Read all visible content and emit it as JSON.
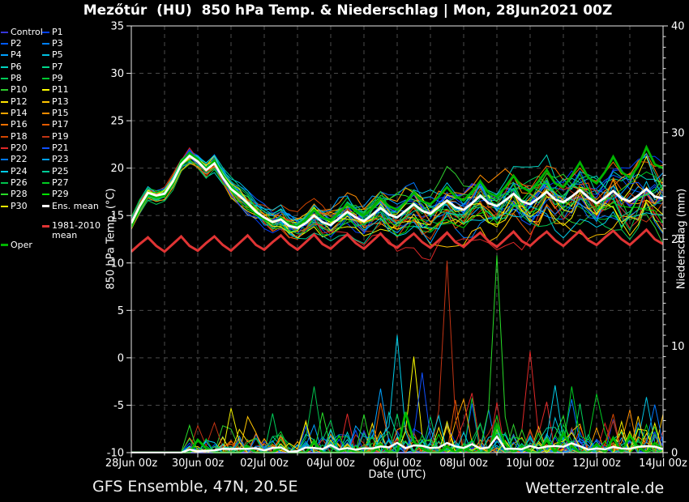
{
  "title": "Mezőtúr  (HU)  850 hPa Temp. & Niederschlag | Mon, 28Jun2021 00Z",
  "footer": {
    "left": "GFS Ensemble, 47N, 20.5E",
    "right": "Wetterzentrale.de"
  },
  "colors": {
    "background": "#000000",
    "text": "#ffffff",
    "grid": "#565656",
    "frame": "#e8e8e8",
    "ens_mean": "#ffffff",
    "climate_mean": "#e03434",
    "oper": "#00b400",
    "control": "#3636d8"
  },
  "legend": {
    "ens_mean_label": "Ens. mean",
    "climate_label": [
      "1981-2010",
      "mean"
    ],
    "oper_label": "Oper"
  },
  "chart_data": {
    "type": "line",
    "title": "Mezőtúr  (HU)  850 hPa Temp. & Niederschlag | Mon, 28Jun2021 00Z",
    "xlabel": "Date (UTC)",
    "ylabel_left": "850 hPa Temp. (°C)",
    "ylabel_right": "Niederschlag (mm)",
    "ylim_left": [
      -10,
      35
    ],
    "ylim_right": [
      0,
      40
    ],
    "x_start": "28Jun2021 00Z",
    "x_step_hours": 6,
    "n_points": 65,
    "n_days": 16,
    "x_tick_labels": [
      "28Jun 00z",
      "30Jun 00z",
      "02Jul 00z",
      "04Jul 00z",
      "06Jul 00z",
      "08Jul 00z",
      "10Jul 00z",
      "12Jul 00z",
      "14Jul 00z"
    ],
    "left_tick_values": [
      35,
      30,
      25,
      20,
      15,
      10,
      5,
      0,
      -5,
      -10
    ],
    "right_tick_values": [
      40,
      30,
      20,
      10,
      0
    ],
    "grid_on": true,
    "legend_position": "top-left",
    "series": {
      "ens_mean_temp": [
        14.2,
        16.0,
        17.4,
        17.1,
        17.3,
        18.6,
        20.4,
        21.3,
        20.7,
        19.8,
        20.5,
        19.0,
        17.8,
        17.1,
        16.3,
        15.4,
        14.8,
        14.3,
        14.6,
        13.9,
        13.7,
        14.2,
        15.0,
        14.3,
        14.0,
        14.7,
        15.4,
        14.8,
        14.4,
        15.1,
        15.8,
        15.1,
        14.8,
        15.5,
        16.2,
        15.5,
        15.2,
        15.9,
        16.6,
        15.9,
        15.6,
        16.3,
        17.1,
        16.3,
        16.0,
        16.6,
        17.3,
        16.5,
        16.2,
        16.8,
        17.5,
        16.7,
        16.4,
        17.0,
        17.7,
        16.9,
        16.3,
        16.9,
        17.6,
        16.8,
        16.5,
        17.1,
        17.8,
        17.0,
        16.8
      ],
      "climate_mean_temp": [
        11.2,
        12.0,
        12.7,
        11.8,
        11.2,
        12.0,
        12.8,
        11.8,
        11.3,
        12.1,
        12.8,
        11.9,
        11.3,
        12.1,
        12.9,
        11.9,
        11.4,
        12.2,
        12.9,
        12.0,
        11.4,
        12.2,
        13.0,
        12.0,
        11.5,
        12.3,
        13.0,
        12.1,
        11.5,
        12.3,
        13.1,
        12.1,
        11.6,
        12.4,
        13.1,
        12.2,
        11.6,
        12.4,
        13.2,
        12.2,
        11.7,
        12.5,
        13.2,
        12.3,
        11.7,
        12.5,
        13.3,
        12.3,
        11.8,
        12.6,
        13.3,
        12.4,
        11.8,
        12.6,
        13.4,
        12.4,
        11.9,
        12.7,
        13.4,
        12.5,
        11.9,
        12.7,
        13.5,
        12.5,
        12.0
      ],
      "oper_temp": [
        13.8,
        15.8,
        17.2,
        16.9,
        17.1,
        18.4,
        20.6,
        21.6,
        20.9,
        19.9,
        20.8,
        19.2,
        18.0,
        17.2,
        16.1,
        15.2,
        14.6,
        14.2,
        14.8,
        14.0,
        13.9,
        14.6,
        15.6,
        14.8,
        14.5,
        15.3,
        16.2,
        15.5,
        15.0,
        15.8,
        16.8,
        16.0,
        15.6,
        16.4,
        17.4,
        16.5,
        16.2,
        17.0,
        18.0,
        17.0,
        16.6,
        17.5,
        18.6,
        17.4,
        17.0,
        18.0,
        19.2,
        18.0,
        17.5,
        18.6,
        19.8,
        18.4,
        18.0,
        19.2,
        20.6,
        19.0,
        18.4,
        19.6,
        21.2,
        19.6,
        19.0,
        20.2,
        22.2,
        20.4,
        20.0
      ],
      "oper_precip": [
        0,
        0,
        0,
        0,
        0,
        0,
        0,
        0,
        1.2,
        0.4,
        0,
        0,
        0,
        0,
        0.6,
        0,
        0,
        0,
        0.5,
        0,
        0,
        0,
        1.0,
        0,
        0,
        0,
        0.5,
        0,
        0,
        0,
        0.8,
        0,
        0,
        3.8,
        1.0,
        0.4,
        0,
        0,
        0.6,
        0,
        0.4,
        0,
        0,
        0,
        2.6,
        0.8,
        0,
        0.6,
        0,
        0,
        1.2,
        0,
        1.8,
        0.6,
        0,
        0,
        0.8,
        0,
        1.4,
        0,
        1.6,
        0.5,
        0,
        0.9,
        0.3
      ],
      "members": [
        {
          "name": "Control",
          "color": "#3636d8",
          "seed": 101,
          "amp": 0.7
        },
        {
          "name": "P1",
          "color": "#0040ff",
          "seed": 1,
          "amp": 1.0
        },
        {
          "name": "P2",
          "color": "#0059ff",
          "seed": 2,
          "amp": 0.9
        },
        {
          "name": "P3",
          "color": "#0080ff",
          "seed": 3,
          "amp": 1.1
        },
        {
          "name": "P4",
          "color": "#00a0ff",
          "seed": 4,
          "amp": 0.85
        },
        {
          "name": "P5",
          "color": "#00c0e0",
          "seed": 5,
          "amp": 1.15
        },
        {
          "name": "P6",
          "color": "#00d4c0",
          "seed": 6,
          "amp": 1.0
        },
        {
          "name": "P7",
          "color": "#00d88c",
          "seed": 7,
          "amp": 0.9
        },
        {
          "name": "P8",
          "color": "#00cc58",
          "seed": 8,
          "amp": 1.1
        },
        {
          "name": "P9",
          "color": "#00c830",
          "seed": 9,
          "amp": 1.0
        },
        {
          "name": "P10",
          "color": "#2ecc2e",
          "seed": 10,
          "amp": 1.25
        },
        {
          "name": "P11",
          "color": "#ffff00",
          "seed": 11,
          "amp": 1.0
        },
        {
          "name": "P12",
          "color": "#ffe400",
          "seed": 12,
          "amp": 0.9
        },
        {
          "name": "P13",
          "color": "#ffc400",
          "seed": 13,
          "amp": 1.35
        },
        {
          "name": "P14",
          "color": "#ffa400",
          "seed": 14,
          "amp": 1.0
        },
        {
          "name": "P15",
          "color": "#ff8c00",
          "seed": 15,
          "amp": 1.1
        },
        {
          "name": "P16",
          "color": "#f47000",
          "seed": 16,
          "amp": 0.9
        },
        {
          "name": "P17",
          "color": "#e45a00",
          "seed": 17,
          "amp": 1.2
        },
        {
          "name": "P18",
          "color": "#d44600",
          "seed": 18,
          "amp": 1.0
        },
        {
          "name": "P19",
          "color": "#c23414",
          "seed": 19,
          "amp": 1.1
        },
        {
          "name": "P20",
          "color": "#e02828",
          "seed": 20,
          "amp": 1.3
        },
        {
          "name": "P21",
          "color": "#1050ff",
          "seed": 21,
          "amp": 1.0
        },
        {
          "name": "P22",
          "color": "#0078ff",
          "seed": 22,
          "amp": 0.9
        },
        {
          "name": "P23",
          "color": "#00a2ff",
          "seed": 23,
          "amp": 1.15
        },
        {
          "name": "P24",
          "color": "#00cce8",
          "seed": 24,
          "amp": 1.0
        },
        {
          "name": "P25",
          "color": "#00cc96",
          "seed": 25,
          "amp": 1.1
        },
        {
          "name": "P26",
          "color": "#00c24e",
          "seed": 26,
          "amp": 1.0
        },
        {
          "name": "P27",
          "color": "#00cc22",
          "seed": 27,
          "amp": 0.9
        },
        {
          "name": "P28",
          "color": "#28dc28",
          "seed": 28,
          "amp": 1.2
        },
        {
          "name": "P29",
          "color": "#00e400",
          "seed": 29,
          "amp": 1.0
        },
        {
          "name": "P30",
          "color": "#f0f000",
          "seed": 30,
          "amp": 1.1
        }
      ],
      "precip_events": [
        [
          "P19",
          10,
          2.8
        ],
        [
          "P10",
          12,
          2.2
        ],
        [
          "P26",
          22,
          6.2
        ],
        [
          "P23",
          30,
          6.0
        ],
        [
          "P24",
          32,
          11.0
        ],
        [
          "P11",
          34,
          9.0
        ],
        [
          "P21",
          35,
          7.5
        ],
        [
          "P19",
          38,
          18.0
        ],
        [
          "P14",
          40,
          5.0
        ],
        [
          "P28",
          44,
          18.5
        ],
        [
          "P20",
          48,
          9.5
        ],
        [
          "P24",
          51,
          6.3
        ],
        [
          "P3",
          53,
          5.0
        ],
        [
          "P27",
          56,
          5.5
        ],
        [
          "P5",
          62,
          5.2
        ],
        [
          "P22",
          63,
          4.5
        ]
      ]
    }
  }
}
